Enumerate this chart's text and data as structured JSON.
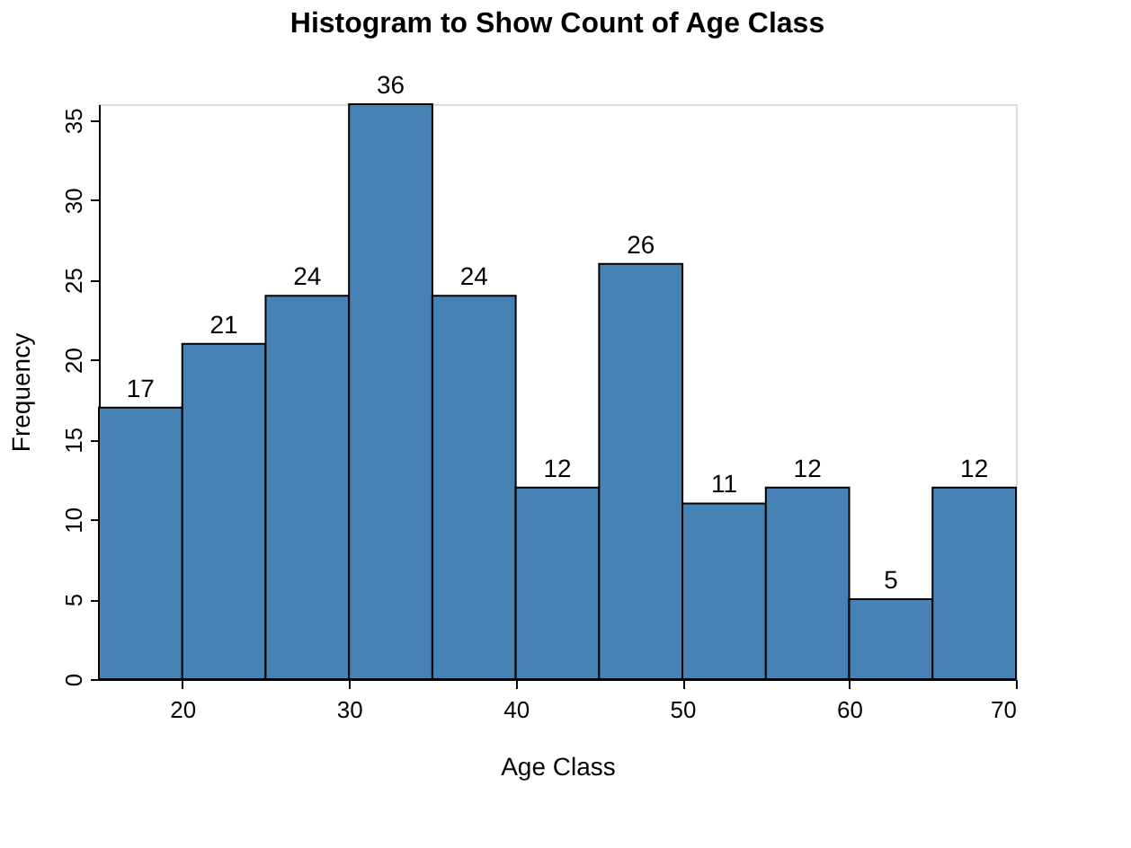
{
  "chart_data": {
    "type": "histogram",
    "title": "Histogram to Show Count of Age Class",
    "xlabel": "Age Class",
    "ylabel": "Frequency",
    "bins": [
      15,
      20,
      25,
      30,
      35,
      40,
      45,
      50,
      55,
      60,
      65,
      70
    ],
    "values": [
      17,
      21,
      24,
      36,
      24,
      12,
      26,
      11,
      12,
      5,
      12
    ],
    "color": "#4682b4",
    "data_labels": true,
    "grid": false,
    "xlim": [
      15,
      70
    ],
    "xticks": [
      20,
      30,
      40,
      50,
      60,
      70
    ],
    "ylim": [
      0,
      36
    ],
    "yticks": [
      0,
      5,
      10,
      15,
      20,
      25,
      30,
      35
    ]
  }
}
